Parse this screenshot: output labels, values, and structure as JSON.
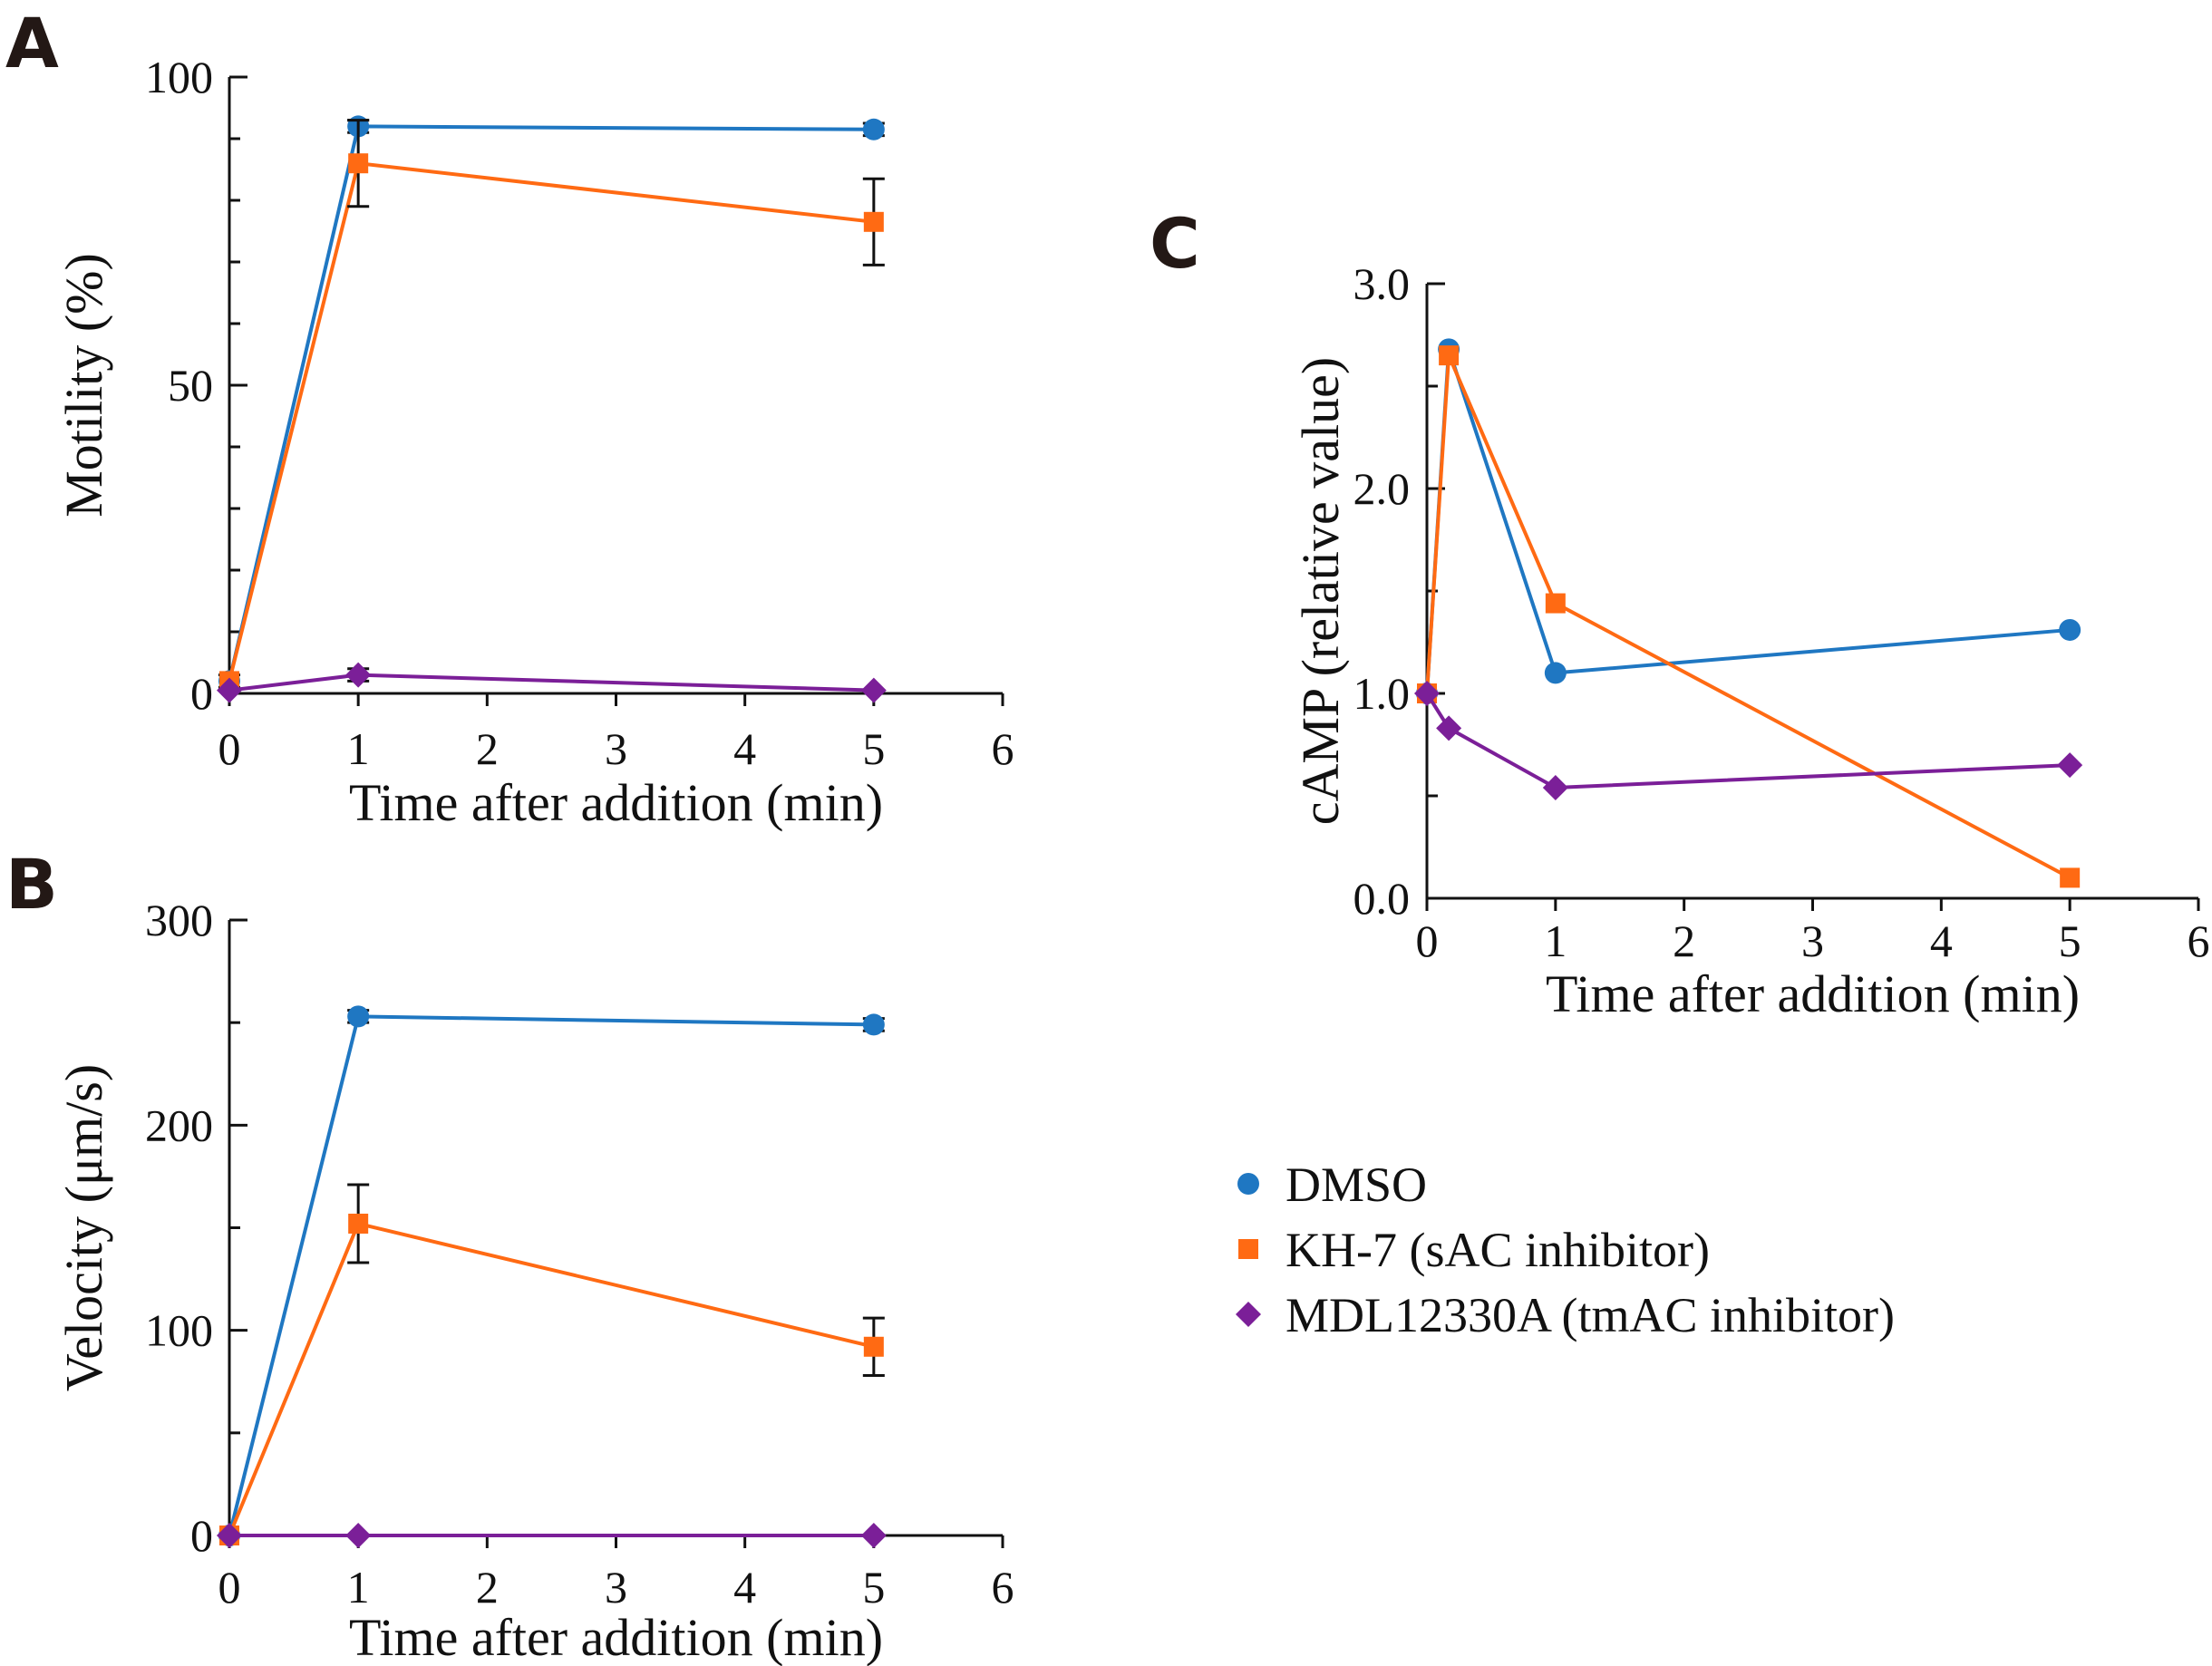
{
  "legend": [
    {
      "id": "dmso",
      "label": "DMSO",
      "color": "#1F77C2",
      "marker": "circle"
    },
    {
      "id": "kh7",
      "label": "KH-7 (sAC inhibitor)",
      "color": "#FF6A13",
      "marker": "square"
    },
    {
      "id": "mdl",
      "label": "MDL12330A (tmAC inhibitor)",
      "color": "#7B1F98",
      "marker": "diamond"
    }
  ],
  "chart_data": [
    {
      "panel": "A",
      "type": "line",
      "xlabel": "Time after addition (min)",
      "ylabel": "Motility (%)",
      "xlim": [
        0,
        6
      ],
      "ylim": [
        0,
        100
      ],
      "xticks": [
        0,
        1,
        2,
        3,
        4,
        5,
        6
      ],
      "yticks_labeled": [
        0,
        50,
        100
      ],
      "yticks_minor": [
        10,
        20,
        30,
        40,
        60,
        70,
        80,
        90
      ],
      "series": [
        {
          "id": "dmso",
          "name": "DMSO",
          "x": [
            0,
            1,
            5
          ],
          "values": [
            2,
            92,
            91.5
          ],
          "errors": [
            0,
            1,
            1
          ]
        },
        {
          "id": "kh7",
          "name": "KH-7 (sAC inhibitor)",
          "x": [
            0,
            1,
            5
          ],
          "values": [
            2,
            86,
            76.5
          ],
          "errors": [
            1,
            7,
            7
          ]
        },
        {
          "id": "mdl",
          "name": "MDL12330A (tmAC inhibitor)",
          "x": [
            0,
            1,
            5
          ],
          "values": [
            0.5,
            3,
            0.5
          ],
          "errors": [
            0,
            1,
            0
          ]
        }
      ]
    },
    {
      "panel": "B",
      "type": "line",
      "xlabel": "Time after addition (min)",
      "ylabel": "Velocity (μm/s)",
      "xlim": [
        0,
        6
      ],
      "ylim": [
        0,
        300
      ],
      "xticks": [
        0,
        1,
        2,
        3,
        4,
        5,
        6
      ],
      "yticks_labeled": [
        0,
        100,
        200,
        300
      ],
      "yticks_minor": [
        50,
        150,
        250
      ],
      "series": [
        {
          "id": "dmso",
          "name": "DMSO",
          "x": [
            0,
            1,
            5
          ],
          "values": [
            0,
            253,
            249
          ],
          "errors": [
            0,
            3,
            3
          ]
        },
        {
          "id": "kh7",
          "name": "KH-7 (sAC inhibitor)",
          "x": [
            0,
            1,
            5
          ],
          "values": [
            0,
            152,
            92
          ],
          "errors": [
            0,
            19,
            14
          ]
        },
        {
          "id": "mdl",
          "name": "MDL12330A (tmAC inhibitor)",
          "x": [
            0,
            1,
            5
          ],
          "values": [
            0,
            0,
            0
          ],
          "errors": [
            0,
            0,
            0
          ]
        }
      ]
    },
    {
      "panel": "C",
      "type": "line",
      "xlabel": "Time after addition (min)",
      "ylabel": "cAMP (relative value)",
      "xlim": [
        0,
        6
      ],
      "ylim": [
        0,
        3
      ],
      "xticks": [
        0,
        1,
        2,
        3,
        4,
        5,
        6
      ],
      "yticks_labeled": [
        0,
        1,
        2,
        3
      ],
      "ytick_labels": [
        "0.0",
        "1.0",
        "2.0",
        "3.0"
      ],
      "yticks_minor": [
        0.5,
        1.5,
        2.5
      ],
      "series": [
        {
          "id": "dmso",
          "name": "DMSO",
          "x": [
            0,
            0.17,
            1,
            5
          ],
          "values": [
            1.0,
            2.68,
            1.1,
            1.31
          ],
          "errors": [
            0,
            0,
            0,
            0
          ]
        },
        {
          "id": "kh7",
          "name": "KH-7 (sAC inhibitor)",
          "x": [
            0,
            0.17,
            1,
            5
          ],
          "values": [
            1.0,
            2.65,
            1.44,
            0.1
          ],
          "errors": [
            0,
            0,
            0,
            0
          ]
        },
        {
          "id": "mdl",
          "name": "MDL12330A (tmAC inhibitor)",
          "x": [
            0,
            0.17,
            1,
            5
          ],
          "values": [
            1.0,
            0.83,
            0.54,
            0.65
          ],
          "errors": [
            0,
            0,
            0,
            0
          ]
        }
      ]
    }
  ]
}
